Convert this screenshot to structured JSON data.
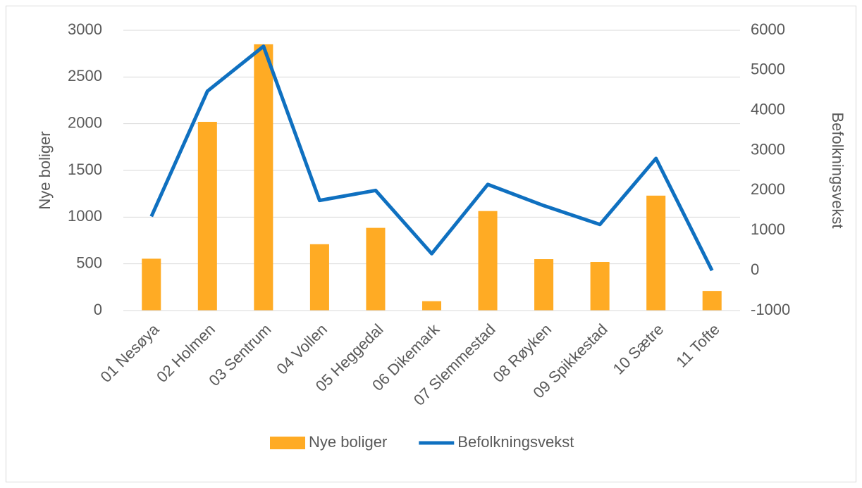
{
  "chart_data": {
    "type": "bar_line",
    "categories": [
      "01 Nesøya",
      "02 Holmen",
      "03 Sentrum",
      "04 Vollen",
      "05 Heggedal",
      "06 Dikemark",
      "07 Slemmestad",
      "08 Røyken",
      "09 Spikkestad",
      "10 Sætre",
      "11 Tofte"
    ],
    "series": [
      {
        "name": "Nye boliger",
        "type": "bar",
        "color": "#ffab24",
        "values": [
          555,
          2020,
          2850,
          710,
          885,
          100,
          1065,
          550,
          520,
          1230,
          210
        ]
      },
      {
        "name": "Befolkningsvekst",
        "type": "line",
        "axis": "y2",
        "color": "#0f70c0",
        "values": [
          1350,
          4480,
          5600,
          1750,
          2000,
          420,
          2150,
          1620,
          1150,
          2800,
          0
        ]
      }
    ],
    "ylabel": "Nye boliger",
    "y2label": "Befolkningsvekst",
    "ylim": [
      0,
      3000
    ],
    "yticks": [
      0,
      500,
      1000,
      1500,
      2000,
      2500,
      3000
    ],
    "y2lim": [
      -1000,
      6000
    ],
    "y2ticks": [
      -1000,
      0,
      1000,
      2000,
      3000,
      4000,
      5000,
      6000
    ],
    "grid": true,
    "legend": "bottom"
  }
}
